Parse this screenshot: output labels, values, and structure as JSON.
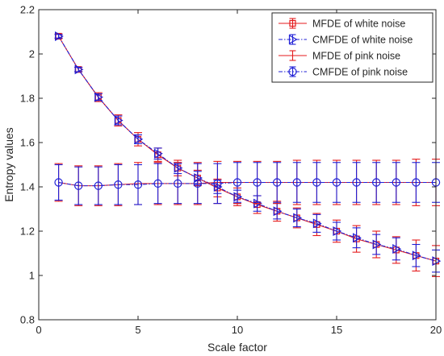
{
  "chart_data": {
    "type": "line",
    "title": "",
    "xlabel": "Scale factor",
    "ylabel": "Entropy values",
    "xlim": [
      0,
      20
    ],
    "ylim": [
      0.8,
      2.2
    ],
    "xticks": [
      0,
      5,
      10,
      15,
      20
    ],
    "yticks": [
      0.8,
      1,
      1.2,
      1.4,
      1.6,
      1.8,
      2,
      2.2
    ],
    "xtick_labels": [
      "0",
      "5",
      "10",
      "15",
      "20"
    ],
    "ytick_labels": [
      "0.8",
      "1",
      "1.2",
      "1.4",
      "1.6",
      "1.8",
      "2",
      "2.2"
    ],
    "grid": false,
    "legend_position": "top-right",
    "x": [
      1,
      2,
      3,
      4,
      5,
      6,
      7,
      8,
      9,
      10,
      11,
      12,
      13,
      14,
      15,
      16,
      17,
      18,
      19,
      20
    ],
    "series": [
      {
        "name": "MFDE of white noise",
        "color": "#e41a1c",
        "line": "solid",
        "marker": "square",
        "values": [
          2.08,
          1.93,
          1.805,
          1.7,
          1.615,
          1.545,
          1.485,
          1.44,
          1.395,
          1.355,
          1.32,
          1.29,
          1.26,
          1.23,
          1.2,
          1.165,
          1.14,
          1.115,
          1.09,
          1.065
        ],
        "errors": [
          0.01,
          0.01,
          0.02,
          0.025,
          0.03,
          0.03,
          0.035,
          0.035,
          0.04,
          0.04,
          0.04,
          0.045,
          0.045,
          0.05,
          0.05,
          0.06,
          0.06,
          0.06,
          0.07,
          0.07
        ]
      },
      {
        "name": "CMFDE of white noise",
        "color": "#1f1fd6",
        "line": "dashdot",
        "marker": "triangle-right",
        "values": [
          2.08,
          1.93,
          1.805,
          1.7,
          1.615,
          1.55,
          1.485,
          1.44,
          1.4,
          1.355,
          1.325,
          1.29,
          1.26,
          1.235,
          1.2,
          1.17,
          1.14,
          1.12,
          1.09,
          1.065
        ],
        "errors": [
          0.008,
          0.01,
          0.015,
          0.02,
          0.02,
          0.025,
          0.025,
          0.03,
          0.03,
          0.03,
          0.035,
          0.035,
          0.04,
          0.04,
          0.04,
          0.045,
          0.045,
          0.05,
          0.05,
          0.05
        ]
      },
      {
        "name": "MFDE of pink noise",
        "color": "#e41a1c",
        "line": "solid",
        "marker": "none",
        "values": [
          1.42,
          1.405,
          1.405,
          1.41,
          1.415,
          1.415,
          1.415,
          1.415,
          1.42,
          1.42,
          1.42,
          1.42,
          1.42,
          1.42,
          1.42,
          1.42,
          1.42,
          1.42,
          1.42,
          1.42
        ],
        "errors": [
          0.085,
          0.09,
          0.09,
          0.095,
          0.095,
          0.095,
          0.095,
          0.095,
          0.095,
          0.095,
          0.095,
          0.095,
          0.1,
          0.1,
          0.1,
          0.1,
          0.1,
          0.1,
          0.105,
          0.105
        ]
      },
      {
        "name": "CMFDE of pink noise",
        "color": "#1f1fd6",
        "line": "dashdot",
        "marker": "circle",
        "values": [
          1.42,
          1.405,
          1.405,
          1.41,
          1.41,
          1.415,
          1.415,
          1.415,
          1.415,
          1.42,
          1.42,
          1.42,
          1.42,
          1.42,
          1.42,
          1.42,
          1.42,
          1.42,
          1.42,
          1.42
        ],
        "errors": [
          0.08,
          0.085,
          0.085,
          0.09,
          0.09,
          0.09,
          0.09,
          0.09,
          0.09,
          0.09,
          0.09,
          0.09,
          0.09,
          0.09,
          0.09,
          0.09,
          0.09,
          0.09,
          0.09,
          0.09
        ]
      }
    ]
  }
}
